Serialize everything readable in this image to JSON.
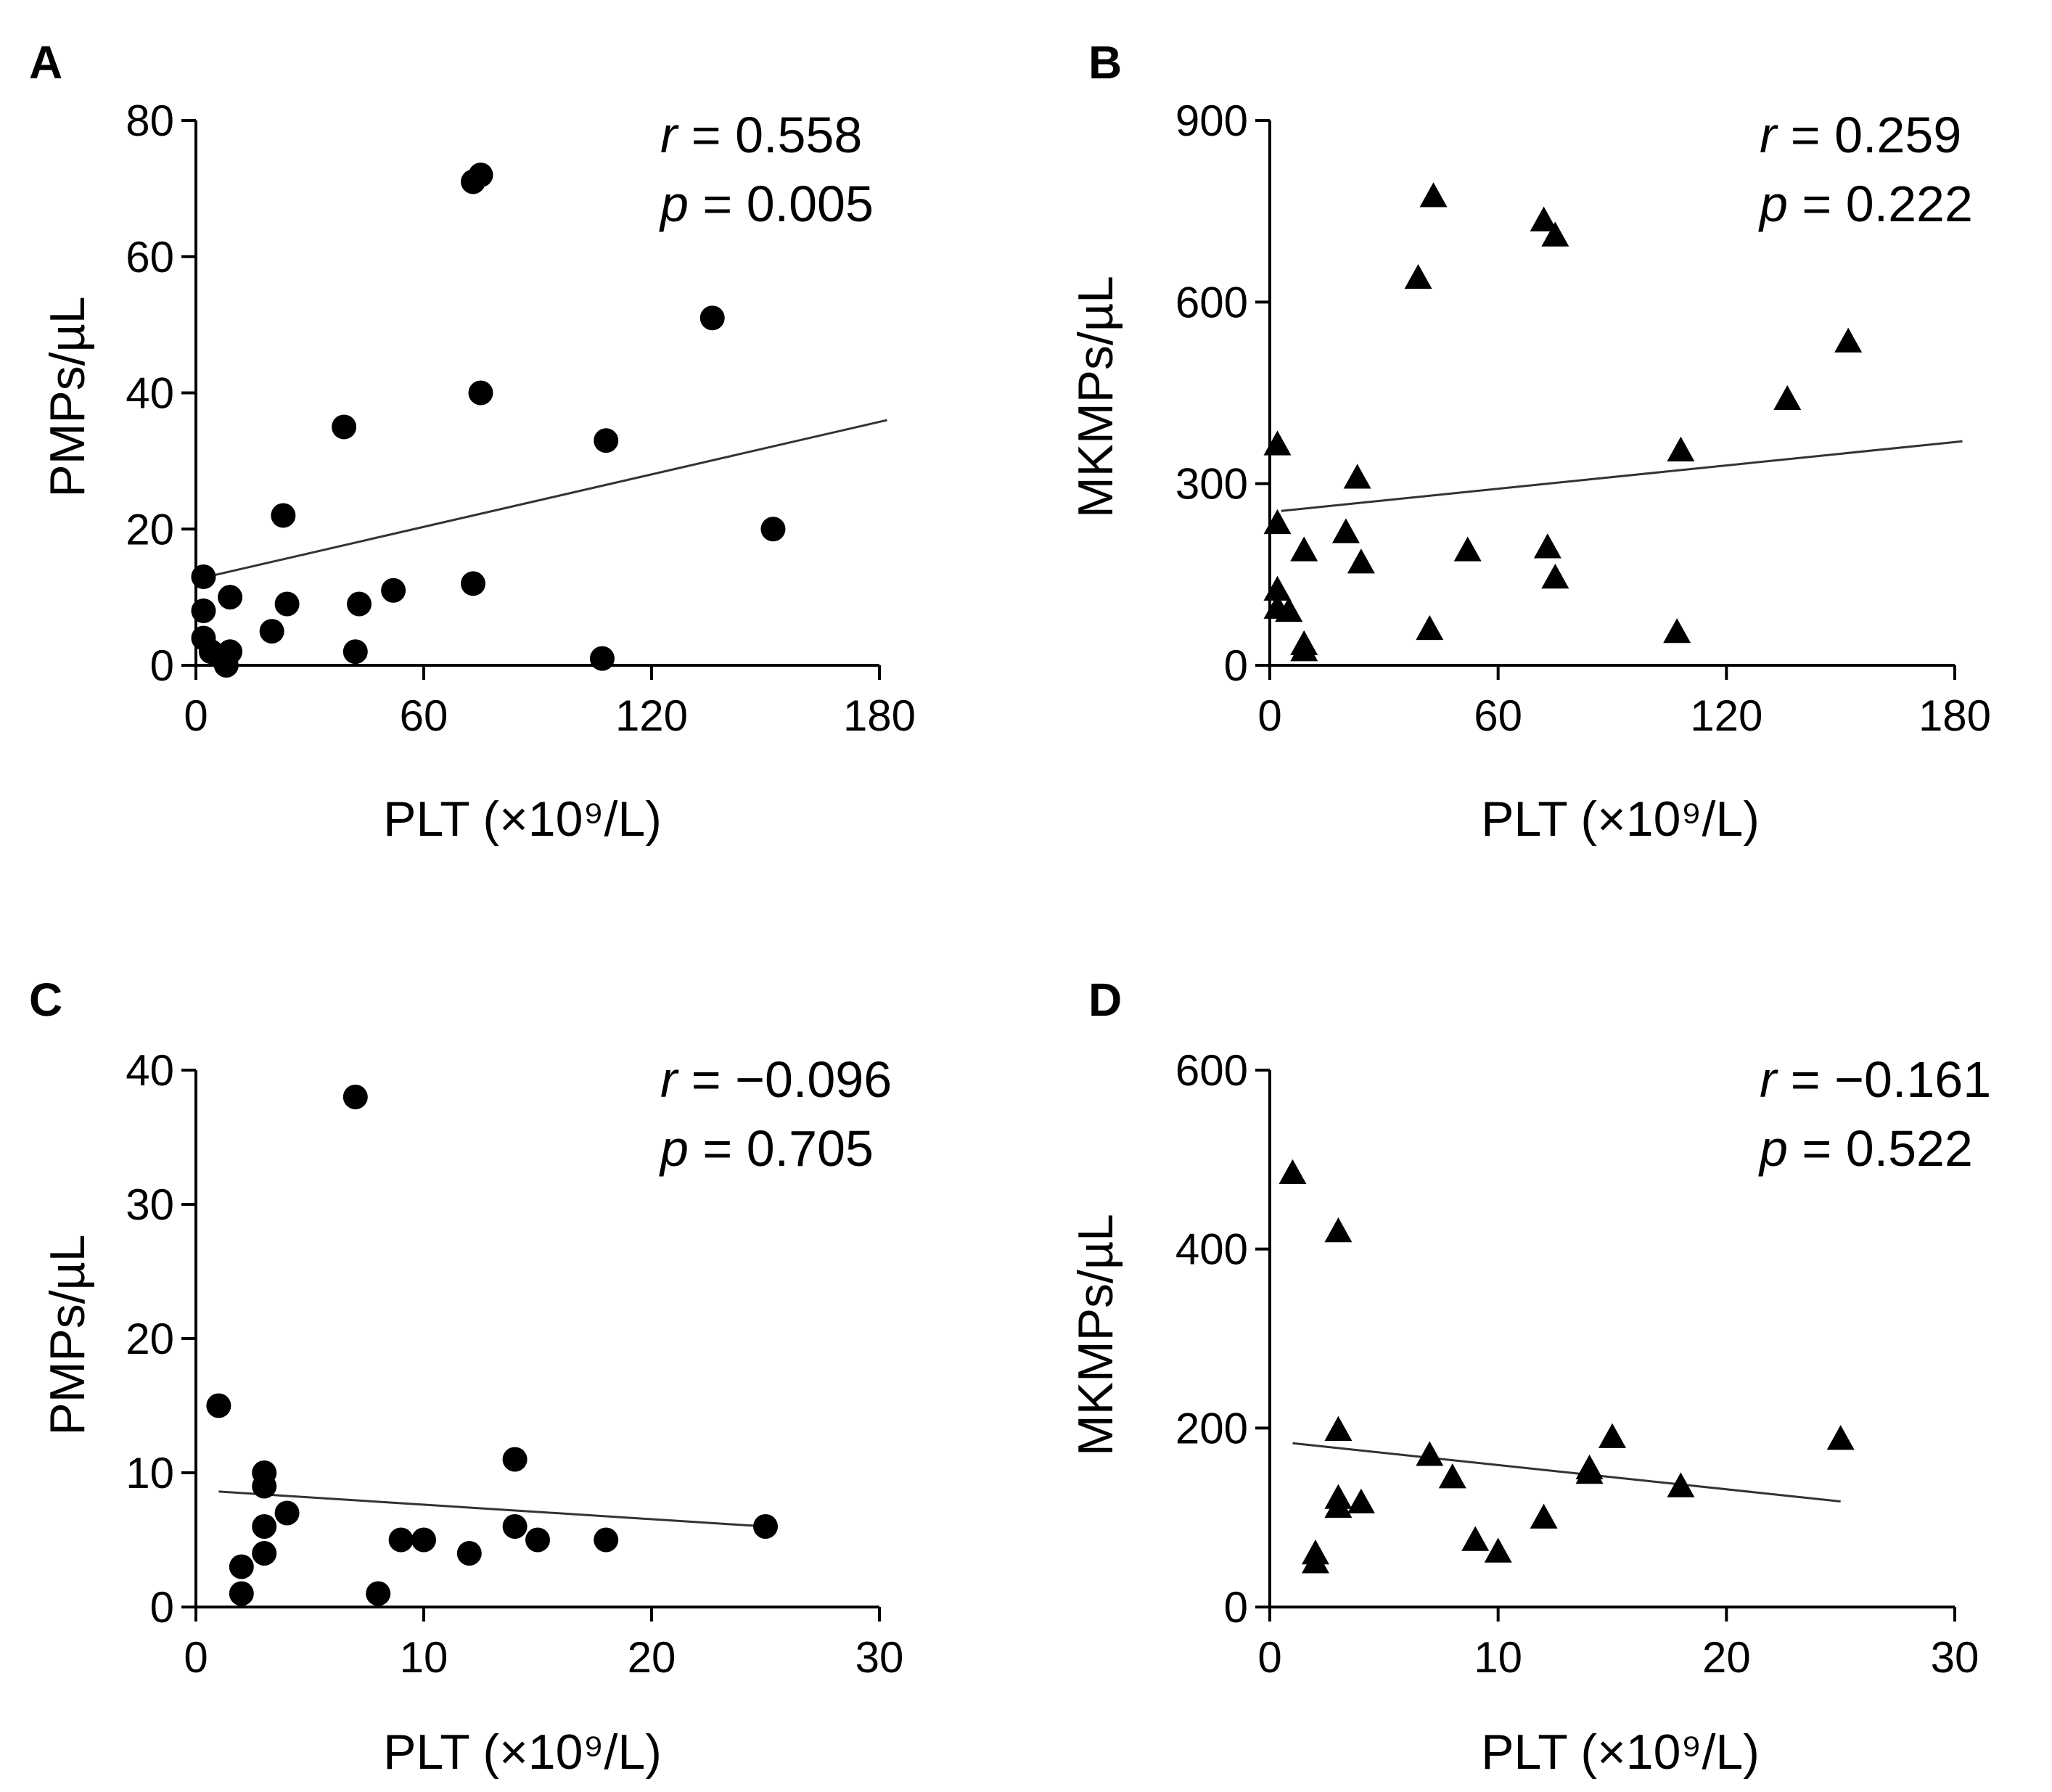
{
  "chart_data": [
    {
      "type": "scatter",
      "panel": "A",
      "marker": "circle",
      "xlabel": "PLT (×10⁹/L)",
      "ylabel": "PMPs/µL",
      "xlim": [
        0,
        180
      ],
      "ylim": [
        0,
        80
      ],
      "xticks": [
        0,
        60,
        120,
        180
      ],
      "yticks": [
        0,
        20,
        40,
        60,
        80
      ],
      "r_label": "r",
      "r_value": "= 0.558",
      "p_label": "p",
      "p_value": "= 0.005",
      "regression": {
        "x": [
          3,
          182
        ],
        "y": [
          13,
          36
        ]
      },
      "points": [
        [
          2,
          13
        ],
        [
          2,
          8
        ],
        [
          2,
          4
        ],
        [
          4,
          2
        ],
        [
          7,
          1
        ],
        [
          8,
          0
        ],
        [
          9,
          2
        ],
        [
          9,
          10
        ],
        [
          20,
          5
        ],
        [
          23,
          22
        ],
        [
          24,
          9
        ],
        [
          39,
          35
        ],
        [
          42,
          2
        ],
        [
          43,
          9
        ],
        [
          52,
          11
        ],
        [
          73,
          71
        ],
        [
          75,
          72
        ],
        [
          73,
          12
        ],
        [
          75,
          40
        ],
        [
          107,
          1
        ],
        [
          108,
          33
        ],
        [
          136,
          51
        ],
        [
          152,
          20
        ]
      ]
    },
    {
      "type": "scatter",
      "panel": "B",
      "marker": "triangle",
      "xlabel": "PLT (×10⁹/L)",
      "ylabel": "MKMPs/µL",
      "xlim": [
        0,
        180
      ],
      "ylim": [
        0,
        900
      ],
      "xticks": [
        0,
        60,
        120,
        180
      ],
      "yticks": [
        0,
        300,
        600,
        900
      ],
      "r_label": "r",
      "r_value": "= 0.259",
      "p_label": "p",
      "p_value": "= 0.222",
      "regression": {
        "x": [
          3,
          182
        ],
        "y": [
          255,
          370
        ]
      },
      "points": [
        [
          2,
          365
        ],
        [
          2,
          235
        ],
        [
          2,
          125
        ],
        [
          2,
          95
        ],
        [
          5,
          90
        ],
        [
          9,
          190
        ],
        [
          9,
          35
        ],
        [
          9,
          25
        ],
        [
          20,
          220
        ],
        [
          23,
          310
        ],
        [
          24,
          170
        ],
        [
          39,
          640
        ],
        [
          42,
          60
        ],
        [
          43,
          775
        ],
        [
          52,
          190
        ],
        [
          72,
          735
        ],
        [
          75,
          710
        ],
        [
          73,
          195
        ],
        [
          75,
          145
        ],
        [
          107,
          55
        ],
        [
          108,
          355
        ],
        [
          136,
          440
        ],
        [
          152,
          535
        ]
      ]
    },
    {
      "type": "scatter",
      "panel": "C",
      "marker": "circle",
      "xlabel": "PLT (×10⁹/L)",
      "ylabel": "PMPs/µL",
      "xlim": [
        0,
        30
      ],
      "ylim": [
        0,
        40
      ],
      "xticks": [
        0,
        10,
        20,
        30
      ],
      "yticks": [
        0,
        10,
        20,
        30,
        40
      ],
      "r_label": "r",
      "r_value": "= −0.096",
      "p_label": "p",
      "p_value": "= 0.705",
      "regression": {
        "x": [
          1,
          25
        ],
        "y": [
          8.6,
          6
        ]
      },
      "points": [
        [
          1,
          15
        ],
        [
          2,
          3
        ],
        [
          2,
          1
        ],
        [
          3,
          10
        ],
        [
          3,
          9
        ],
        [
          3,
          6
        ],
        [
          3,
          4
        ],
        [
          4,
          7
        ],
        [
          7,
          38
        ],
        [
          8,
          1
        ],
        [
          9,
          5
        ],
        [
          10,
          5
        ],
        [
          12,
          4
        ],
        [
          14,
          11
        ],
        [
          14,
          6
        ],
        [
          15,
          5
        ],
        [
          18,
          5
        ],
        [
          25,
          6
        ]
      ]
    },
    {
      "type": "scatter",
      "panel": "D",
      "marker": "triangle",
      "xlabel": "PLT (×10⁹/L)",
      "ylabel": "MKMPs/µL",
      "xlim": [
        0,
        30
      ],
      "ylim": [
        0,
        600
      ],
      "xticks": [
        0,
        10,
        20,
        30
      ],
      "yticks": [
        0,
        200,
        400,
        600
      ],
      "r_label": "r",
      "r_value": "= −0.161",
      "p_label": "p",
      "p_value": "= 0.522",
      "regression": {
        "x": [
          1,
          25
        ],
        "y": [
          183,
          118
        ]
      },
      "points": [
        [
          1,
          485
        ],
        [
          2,
          60
        ],
        [
          2,
          50
        ],
        [
          3,
          420
        ],
        [
          3,
          198
        ],
        [
          3,
          122
        ],
        [
          3,
          112
        ],
        [
          4,
          117
        ],
        [
          7,
          170
        ],
        [
          8,
          145
        ],
        [
          9,
          75
        ],
        [
          10,
          62
        ],
        [
          12,
          100
        ],
        [
          14,
          155
        ],
        [
          14,
          150
        ],
        [
          15,
          190
        ],
        [
          18,
          135
        ],
        [
          25,
          188
        ]
      ]
    }
  ]
}
